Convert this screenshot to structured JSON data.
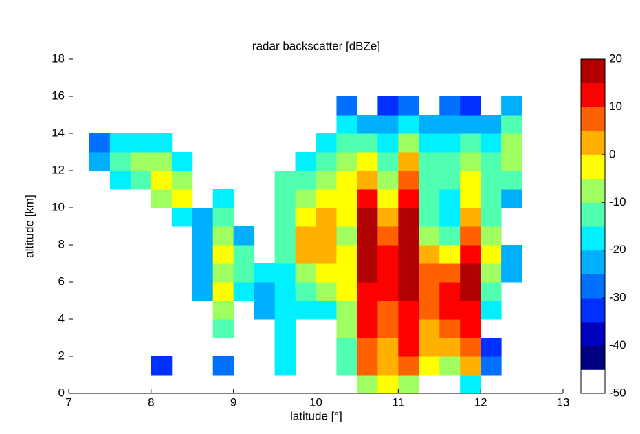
{
  "chart_data": {
    "type": "heatmap",
    "title": "radar backscatter [dBZe]",
    "xlabel": "latitude [°]",
    "ylabel": "altitude [km]",
    "xlim": [
      7,
      13
    ],
    "ylim": [
      0,
      18
    ],
    "xticks": [
      7,
      8,
      9,
      10,
      11,
      12,
      13
    ],
    "yticks": [
      0,
      2,
      4,
      6,
      8,
      10,
      12,
      14,
      16,
      18
    ],
    "xbins": [
      7.25,
      7.5,
      7.75,
      8,
      8.25,
      8.5,
      8.75,
      9,
      9.25,
      9.5,
      9.75,
      10,
      10.25,
      10.5,
      10.75,
      11,
      11.25,
      11.5,
      11.75,
      12,
      12.25,
      12.5
    ],
    "ybins": [
      0,
      1,
      2,
      3,
      4,
      5,
      6,
      7,
      8,
      9,
      10,
      11,
      12,
      13,
      14,
      15,
      16
    ],
    "z": [
      [
        null,
        null,
        null,
        null,
        null,
        null,
        null,
        null,
        null,
        null,
        null,
        null,
        null,
        -10,
        -5,
        -10,
        null,
        null,
        -20,
        null,
        null
      ],
      [
        null,
        null,
        null,
        -35,
        null,
        null,
        -30,
        null,
        null,
        -20,
        null,
        null,
        -15,
        5,
        0,
        5,
        -5,
        -10,
        0,
        -30,
        null
      ],
      [
        null,
        null,
        null,
        null,
        null,
        null,
        null,
        null,
        null,
        -20,
        null,
        null,
        -15,
        5,
        0,
        10,
        0,
        0,
        5,
        -35,
        null
      ],
      [
        null,
        null,
        null,
        null,
        null,
        null,
        -15,
        null,
        null,
        -20,
        null,
        null,
        -10,
        10,
        5,
        10,
        0,
        5,
        10,
        null,
        null
      ],
      [
        null,
        null,
        null,
        null,
        null,
        null,
        -10,
        null,
        -25,
        -20,
        -20,
        -20,
        -10,
        10,
        5,
        10,
        5,
        10,
        10,
        -20,
        null
      ],
      [
        null,
        null,
        null,
        null,
        null,
        -25,
        -5,
        -20,
        -25,
        -20,
        -15,
        -10,
        -5,
        10,
        10,
        15,
        5,
        10,
        15,
        -15,
        null
      ],
      [
        null,
        null,
        null,
        null,
        null,
        -25,
        -10,
        -15,
        -20,
        -20,
        -10,
        -5,
        -5,
        15,
        10,
        15,
        5,
        5,
        15,
        -10,
        -25
      ],
      [
        null,
        null,
        null,
        null,
        null,
        -25,
        -5,
        -15,
        null,
        -15,
        0,
        0,
        -5,
        15,
        10,
        15,
        0,
        -5,
        10,
        -5,
        -25
      ],
      [
        null,
        null,
        null,
        null,
        null,
        -25,
        -10,
        -25,
        null,
        -15,
        0,
        0,
        -10,
        15,
        5,
        15,
        -10,
        -15,
        5,
        -10,
        null
      ],
      [
        null,
        null,
        null,
        null,
        -20,
        -25,
        -15,
        null,
        null,
        -15,
        -5,
        0,
        -5,
        15,
        0,
        15,
        -15,
        -20,
        0,
        -15,
        null
      ],
      [
        null,
        null,
        null,
        -10,
        -5,
        null,
        -20,
        null,
        null,
        -15,
        -10,
        -5,
        -5,
        10,
        -5,
        10,
        -15,
        -20,
        -5,
        -15,
        -25
      ],
      [
        null,
        -20,
        -15,
        -5,
        -10,
        null,
        null,
        null,
        null,
        -15,
        -15,
        -10,
        -5,
        0,
        -10,
        5,
        -15,
        -15,
        -5,
        -15,
        -15
      ],
      [
        -25,
        -15,
        -10,
        -10,
        -20,
        null,
        null,
        null,
        null,
        null,
        -20,
        -15,
        -10,
        -5,
        -15,
        0,
        -15,
        -15,
        -10,
        -15,
        -10
      ],
      [
        -30,
        -20,
        -20,
        -20,
        null,
        null,
        null,
        null,
        null,
        null,
        null,
        -20,
        -15,
        -15,
        -20,
        -10,
        -20,
        -20,
        -15,
        -20,
        -10
      ],
      [
        null,
        null,
        null,
        null,
        null,
        null,
        null,
        null,
        null,
        null,
        null,
        null,
        -20,
        -25,
        -25,
        -20,
        -25,
        -25,
        -25,
        -25,
        -15
      ],
      [
        null,
        null,
        null,
        null,
        null,
        null,
        null,
        null,
        null,
        null,
        null,
        null,
        -30,
        null,
        -35,
        -30,
        null,
        -30,
        -35,
        null,
        -25
      ]
    ],
    "colorbar": {
      "clim": [
        -50,
        20
      ],
      "ticks": [
        -50,
        -40,
        -30,
        -20,
        -10,
        0,
        10,
        20
      ],
      "colors": [
        "#ffffff",
        "#000080",
        "#0000c0",
        "#0030ff",
        "#0070ff",
        "#00b0ff",
        "#00f0ff",
        "#50ffb0",
        "#a0ff60",
        "#ffff00",
        "#ffb000",
        "#ff6000",
        "#ff0000",
        "#b00000"
      ]
    }
  }
}
